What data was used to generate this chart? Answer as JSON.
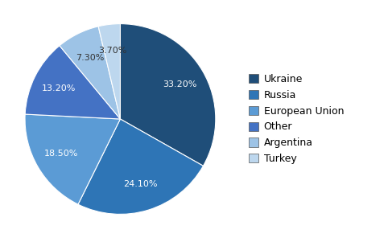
{
  "labels": [
    "Ukraine",
    "Russia",
    "European Union",
    "Other",
    "Argentina",
    "Turkey"
  ],
  "values": [
    33.2,
    24.1,
    18.5,
    13.2,
    7.3,
    3.7
  ],
  "colors": [
    "#1F4E79",
    "#2E75B6",
    "#5B9BD5",
    "#4472C4",
    "#9DC3E6",
    "#BDD7EE"
  ],
  "background_color": "#FFFFFF",
  "startangle": 90,
  "pct_fontsize": 8,
  "legend_fontsize": 9
}
